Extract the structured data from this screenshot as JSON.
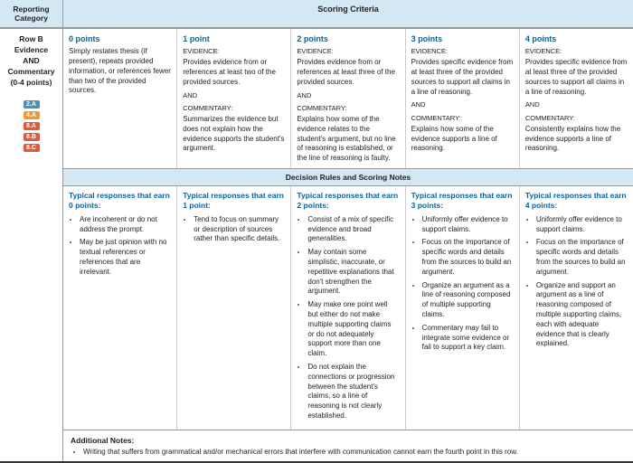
{
  "header": {
    "left": "Reporting Category",
    "right": "Scoring Criteria"
  },
  "rowLabel": {
    "l1": "Row B",
    "l2": "Evidence",
    "l3": "AND",
    "l4": "Commentary",
    "l5": "(0-4 points)"
  },
  "tags": [
    {
      "text": "2.A",
      "color": "#4a8fb8"
    },
    {
      "text": "4.A",
      "color": "#e89b3a"
    },
    {
      "text": "8.A",
      "color": "#e05a3a"
    },
    {
      "text": "8.B",
      "color": "#e05a3a"
    },
    {
      "text": "8.C",
      "color": "#e05a3a"
    }
  ],
  "criteria": [
    {
      "title": "0 points",
      "body": "Simply restates thesis (if present), repeats provided information, or references fewer than two of the provided sources."
    },
    {
      "title": "1 point",
      "ev": "Provides evidence from or references at least two of the provided sources.",
      "com": "Summarizes the evidence but does not explain how the evidence supports the student's argument."
    },
    {
      "title": "2 points",
      "ev": "Provides evidence from or references at least three of the provided sources.",
      "com": "Explains how some of the evidence relates to the student's argument, but no line of reasoning is established, or the line of reasoning is faulty."
    },
    {
      "title": "3 points",
      "ev": "Provides specific evidence from at least three of the provided sources to support all claims in a line of reasoning.",
      "com": "Explains how some of the evidence supports a line of reasoning."
    },
    {
      "title": "4 points",
      "ev": "Provides specific evidence from at least three of the provided sources to support all claims in a line of reasoning.",
      "com": "Consistently explains how the evidence supports a line of reasoning."
    }
  ],
  "decisionHdr": "Decision Rules and Scoring Notes",
  "typical": [
    {
      "title": "Typical responses that earn 0 points:",
      "items": [
        "Are incoherent or do not address the prompt.",
        "May be just opinion with no textual references or references that are irrelevant."
      ]
    },
    {
      "title": "Typical responses that earn 1 point:",
      "items": [
        "Tend to focus on summary or description of sources rather than specific details."
      ]
    },
    {
      "title": "Typical responses that earn 2 points:",
      "items": [
        "Consist of a mix of specific evidence and broad generalities.",
        "May contain some simplistic, inaccurate, or repetitive explanations that don't strengthen the argument.",
        "May make one point well but either do not make multiple supporting claims or do not adequately support more than one claim.",
        "Do not explain the connections or progression between the student's claims, so a line of reasoning is not clearly established."
      ]
    },
    {
      "title": "Typical responses that earn 3 points:",
      "items": [
        "Uniformly offer evidence to support claims.",
        "Focus on the importance of specific words and details from the sources to build an argument.",
        "Organize an argument as a line of reasoning composed of multiple supporting claims.",
        "Commentary may fail to integrate some evidence or fail to support a key claim."
      ]
    },
    {
      "title": "Typical responses that earn 4 points:",
      "items": [
        "Uniformly offer evidence to support claims.",
        "Focus on the importance of specific words and details from the sources to build an argument.",
        "Organize and support an argument as a line of reasoning composed of multiple supporting claims, each with adequate evidence that is clearly explained."
      ]
    }
  ],
  "notes": {
    "title": "Additional Notes:",
    "items": [
      "Writing that suffers from grammatical and/or mechanical errors that interfere with communication cannot earn the fourth point in this row."
    ]
  },
  "labels": {
    "ev": "EVIDENCE:",
    "and": "AND",
    "com": "COMMENTARY:"
  }
}
